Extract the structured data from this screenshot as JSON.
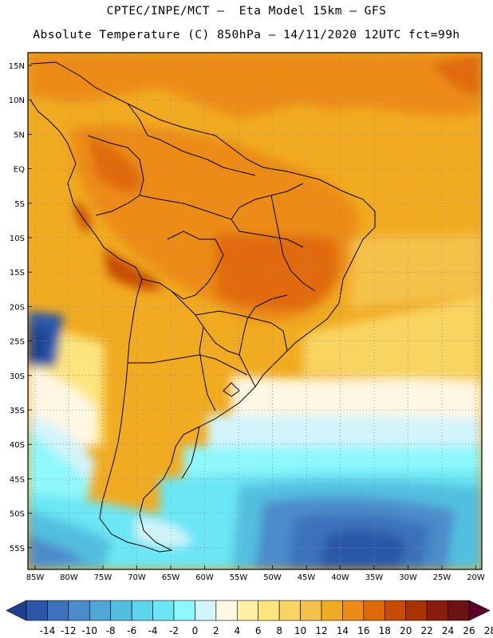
{
  "header": {
    "line1": "CPTEC/INPE/MCT –  Eta Model 15km – GFS",
    "line2": "Absolute Temperature (C) 850hPa – 14/11/2020 12UTC fct=99h"
  },
  "map": {
    "lat_labels": [
      "15N",
      "10N",
      "5N",
      "EQ",
      "5S",
      "10S",
      "15S",
      "20S",
      "25S",
      "30S",
      "35S",
      "40S",
      "45S",
      "50S",
      "55S"
    ],
    "lon_labels": [
      "85W",
      "80W",
      "75W",
      "70W",
      "65W",
      "60W",
      "55W",
      "50W",
      "45W",
      "40W",
      "35W",
      "30W",
      "25W",
      "20W"
    ],
    "grid": "dotted"
  },
  "colorbar": {
    "labels": [
      "-14",
      "-12",
      "-10",
      "-8",
      "-6",
      "-4",
      "-2",
      "0",
      "2",
      "4",
      "6",
      "8",
      "10",
      "12",
      "14",
      "16",
      "18",
      "20",
      "22",
      "24",
      "26",
      "28"
    ],
    "colors": [
      "#1f3f8f",
      "#2a58a8",
      "#3a72bb",
      "#4b8ccb",
      "#4ea7d6",
      "#52bfe0",
      "#5ad6ec",
      "#6ae6f4",
      "#8ff8fc",
      "#d2f4fb",
      "#fff7e3",
      "#fcf0a6",
      "#fde57e",
      "#f8d461",
      "#f4c14a",
      "#f1ab20",
      "#ec8c16",
      "#e06a08",
      "#c74b04",
      "#a93203",
      "#8a1c0f",
      "#6b1313",
      "#5c0028"
    ]
  }
}
